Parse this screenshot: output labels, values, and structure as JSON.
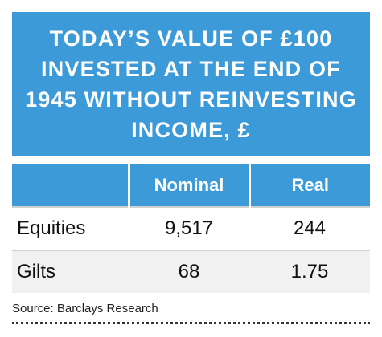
{
  "header": {
    "title": "TODAY’S VALUE OF £100 INVESTED AT THE END OF 1945 WITHOUT REINVESTING INCOME, £"
  },
  "table": {
    "columns": [
      "Nominal",
      "Real"
    ],
    "rows": [
      [
        "Equities",
        "9,517",
        "244"
      ],
      [
        "Gilts",
        "68",
        "1.75"
      ]
    ]
  },
  "footer": {
    "source": "Source: Barclays Research"
  }
}
